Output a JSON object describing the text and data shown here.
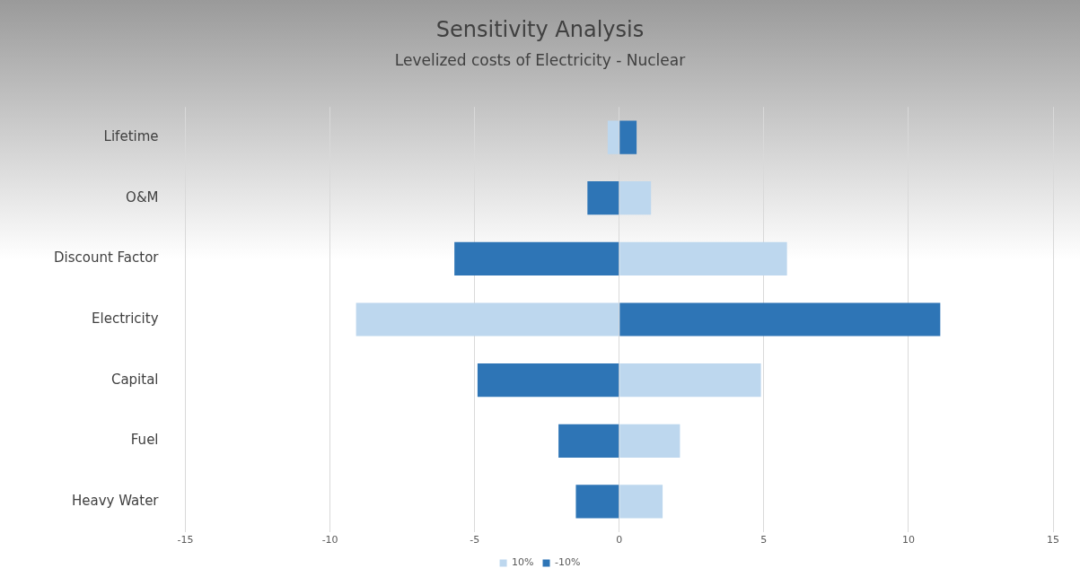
{
  "chart_data": {
    "type": "bar",
    "orientation": "horizontal",
    "stacked": true,
    "title": "Sensitivity Analysis",
    "subtitle": "Levelized costs of Electricity - Nuclear",
    "categories": [
      "Lifetime",
      "O&M",
      "Discount Factor",
      "Electricity",
      "Capital",
      "Fuel",
      "Heavy Water"
    ],
    "series": [
      {
        "name": "10%",
        "color": "#bdd7ee",
        "values": [
          -0.4,
          1.1,
          5.8,
          -9.1,
          4.9,
          2.1,
          1.5
        ]
      },
      {
        "name": "-10%",
        "color": "#2e75b6",
        "values": [
          0.6,
          -1.1,
          -5.7,
          11.1,
          -4.9,
          -2.1,
          -1.5
        ]
      }
    ],
    "xlim": [
      -15,
      15
    ],
    "xticks": [
      -15,
      -10,
      -5,
      0,
      5,
      10,
      15
    ],
    "grid": "x",
    "legend": "bottom"
  }
}
